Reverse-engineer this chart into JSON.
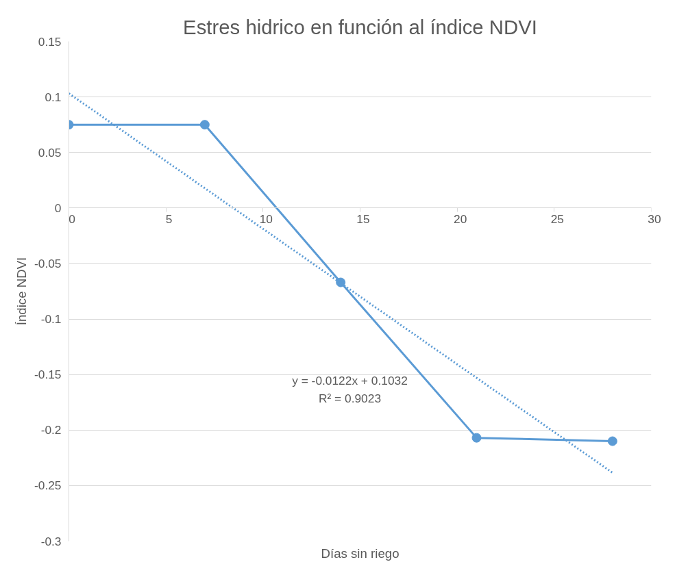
{
  "chart_data": {
    "type": "line",
    "title": "Estres hidrico en función al índice NDVI",
    "xlabel": "Días sin riego",
    "ylabel": "Índice NDVI",
    "xlim": [
      0,
      30
    ],
    "xticks": [
      0,
      5,
      10,
      15,
      20,
      25,
      30
    ],
    "ylim": [
      -0.3,
      0.15
    ],
    "yticks": [
      -0.3,
      -0.25,
      -0.2,
      -0.15,
      -0.1,
      -0.05,
      0,
      0.05,
      0.1,
      0.15
    ],
    "grid": "y",
    "series": [
      {
        "color": "#5b9bd5",
        "x": [
          0,
          7,
          14,
          21,
          28
        ],
        "values": [
          0.075,
          0.075,
          -0.067,
          -0.207,
          -0.21
        ],
        "marker": "circle",
        "line_style": "solid"
      },
      {
        "color": "#5b9bd5",
        "x": [
          0,
          28
        ],
        "values": [
          0.1032,
          -0.2384
        ],
        "marker": "none",
        "line_style": "dotted"
      }
    ],
    "annotations": [
      "y = -0.0122x + 0.1032",
      "R² = 0.9023"
    ]
  }
}
